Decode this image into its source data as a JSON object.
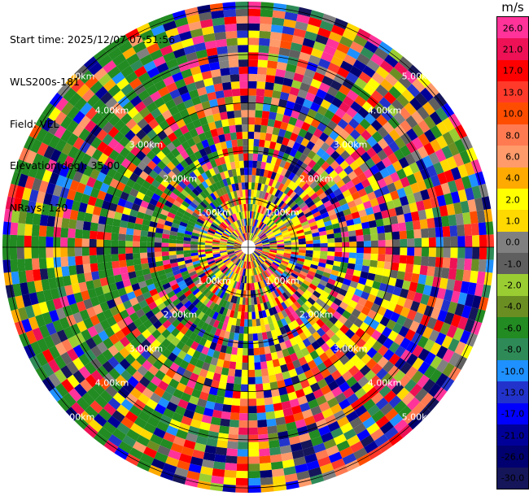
{
  "header": {
    "start_time": "Start time: 2025/12/07 07:51:56",
    "instrument": "WLS200s-181",
    "field": "Field: VEL",
    "elevation": "Elevation(deg): 35.00",
    "nrays": "NRays: 120"
  },
  "colorbar": {
    "unit": "m/s",
    "labels": [
      "26.0",
      "21.0",
      "17.0",
      "13.0",
      "10.0",
      "8.0",
      "6.0",
      "4.0",
      "2.0",
      "1.0",
      "0.0",
      "-1.0",
      "-2.0",
      "-4.0",
      "-6.0",
      "-8.0",
      "-10.0",
      "-13.0",
      "-17.0",
      "-21.0",
      "-26.0",
      "-30.0"
    ],
    "colors": [
      "#ff3399",
      "#ee1155",
      "#ff0000",
      "#ff3a2a",
      "#ff4d00",
      "#ff7a50",
      "#ff9a6a",
      "#ffaa00",
      "#ffff00",
      "#ffd900",
      "#808080",
      "#5f5f5f",
      "#9acd32",
      "#6b8e23",
      "#228b22",
      "#2e8b57",
      "#1e90ff",
      "#2233cc",
      "#0000ff",
      "#000099",
      "#000070",
      "#15155a"
    ]
  },
  "chart_data": {
    "type": "heatmap",
    "projection": "polar (PPI)",
    "field": "VEL",
    "unit": "m/s",
    "nrays": 120,
    "range_rings_km": [
      1.0,
      2.0,
      3.0,
      4.0,
      5.0
    ],
    "ring_labels": [
      "1.00km",
      "2.00km",
      "3.00km",
      "4.00km",
      "5.00km"
    ],
    "color_levels": [
      26.0,
      21.0,
      17.0,
      13.0,
      10.0,
      8.0,
      6.0,
      4.0,
      2.0,
      1.0,
      0.0,
      -1.0,
      -2.0,
      -4.0,
      -6.0,
      -8.0,
      -10.0,
      -13.0,
      -17.0,
      -21.0,
      -26.0,
      -30.0
    ]
  }
}
